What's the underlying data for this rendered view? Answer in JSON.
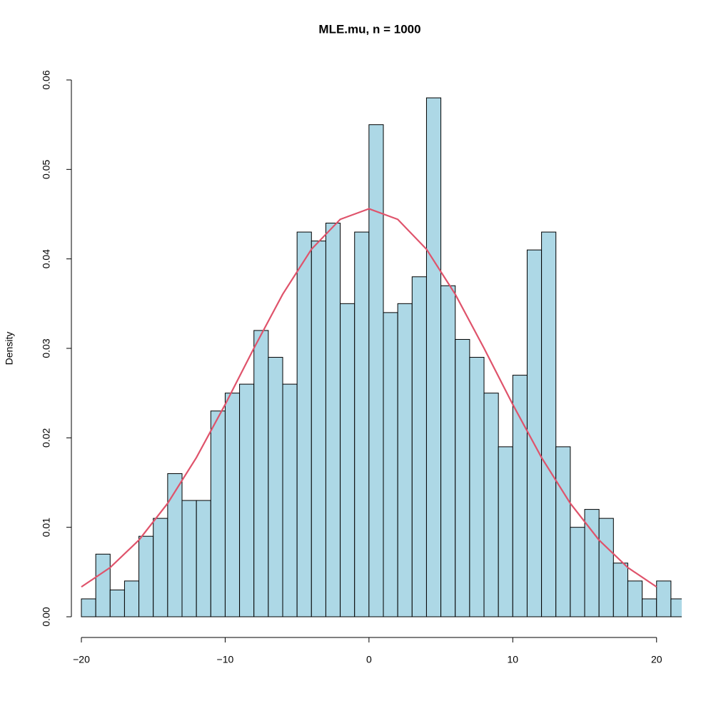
{
  "chart_data": {
    "type": "histogram",
    "title": "MLE.mu, n = 1000",
    "ylabel": "Density",
    "bins": [
      -20,
      -19,
      -18,
      -17,
      -16,
      -15,
      -14,
      -13,
      -12,
      -11,
      -10,
      -9,
      -8,
      -7,
      -6,
      -5,
      -4,
      -3,
      -2,
      -1,
      0,
      1,
      2,
      3,
      4,
      5,
      6,
      7,
      8,
      9,
      10,
      11,
      12,
      13,
      14,
      15,
      16,
      17,
      18,
      19,
      20,
      21,
      22
    ],
    "values": [
      0.002,
      0.007,
      0.003,
      0.004,
      0.009,
      0.011,
      0.016,
      0.013,
      0.013,
      0.023,
      0.025,
      0.026,
      0.032,
      0.029,
      0.026,
      0.043,
      0.042,
      0.044,
      0.035,
      0.043,
      0.055,
      0.034,
      0.035,
      0.038,
      0.058,
      0.037,
      0.031,
      0.029,
      0.025,
      0.019,
      0.027,
      0.041,
      0.043,
      0.019,
      0.01,
      0.012,
      0.011,
      0.006,
      0.004,
      0.002,
      0.004,
      0.002
    ],
    "color": "#add8e6",
    "curve": {
      "color": "#df536b",
      "x": [
        -20,
        -18,
        -16,
        -14,
        -12,
        -10,
        -8,
        -6,
        -4,
        -2,
        0,
        2,
        4,
        6,
        8,
        10,
        12,
        14,
        16,
        18,
        20
      ],
      "y": [
        0.00334,
        0.0055,
        0.00857,
        0.01268,
        0.0178,
        0.02373,
        0.03002,
        0.03605,
        0.04108,
        0.04442,
        0.0456,
        0.04442,
        0.04108,
        0.03605,
        0.03002,
        0.02373,
        0.0178,
        0.01268,
        0.00857,
        0.0055,
        0.00334
      ]
    },
    "xlim": [
      -20,
      21.75
    ],
    "ylim": [
      0,
      0.06
    ],
    "xticks": [
      {
        "value": -20,
        "label": "−20"
      },
      {
        "value": -10,
        "label": "−10"
      },
      0,
      10,
      20
    ],
    "yticks": [
      {
        "value": 0,
        "label": "0.00"
      },
      {
        "value": 0.01,
        "label": "0.01"
      },
      {
        "value": 0.02,
        "label": "0.02"
      },
      {
        "value": 0.03,
        "label": "0.03"
      },
      {
        "value": 0.04,
        "label": "0.04"
      },
      {
        "value": 0.05,
        "label": "0.05"
      },
      {
        "value": 0.06,
        "label": "0.06"
      }
    ]
  }
}
